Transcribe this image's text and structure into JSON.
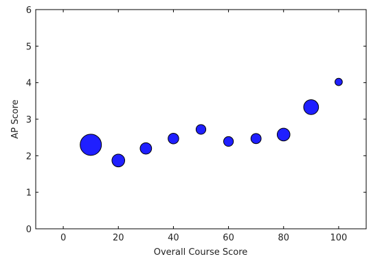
{
  "chart_data": {
    "type": "scatter",
    "title": "",
    "xlabel": "Overall Course Score",
    "ylabel": "AP Score",
    "xlim": [
      -10,
      110
    ],
    "ylim": [
      0,
      6
    ],
    "xticks": [
      "0",
      "20",
      "40",
      "60",
      "80",
      "100"
    ],
    "xtick_values": [
      0,
      20,
      40,
      60,
      80,
      100
    ],
    "yticks": [
      "0",
      "1",
      "2",
      "3",
      "4",
      "5",
      "6"
    ],
    "ytick_values": [
      0,
      1,
      2,
      3,
      4,
      5,
      6
    ],
    "grid": false,
    "legend": "none",
    "marker_color": "#1f1fff",
    "marker_edge_color": "#000000",
    "points": [
      {
        "x": 10,
        "y": 2.3,
        "size": 100
      },
      {
        "x": 20,
        "y": 1.87,
        "size": 36
      },
      {
        "x": 30,
        "y": 2.2,
        "size": 29
      },
      {
        "x": 40,
        "y": 2.47,
        "size": 25
      },
      {
        "x": 50,
        "y": 2.72,
        "size": 21
      },
      {
        "x": 60,
        "y": 2.39,
        "size": 21
      },
      {
        "x": 70,
        "y": 2.47,
        "size": 23
      },
      {
        "x": 80,
        "y": 2.58,
        "size": 36
      },
      {
        "x": 90,
        "y": 3.33,
        "size": 49
      },
      {
        "x": 100,
        "y": 4.02,
        "size": 12
      }
    ]
  }
}
